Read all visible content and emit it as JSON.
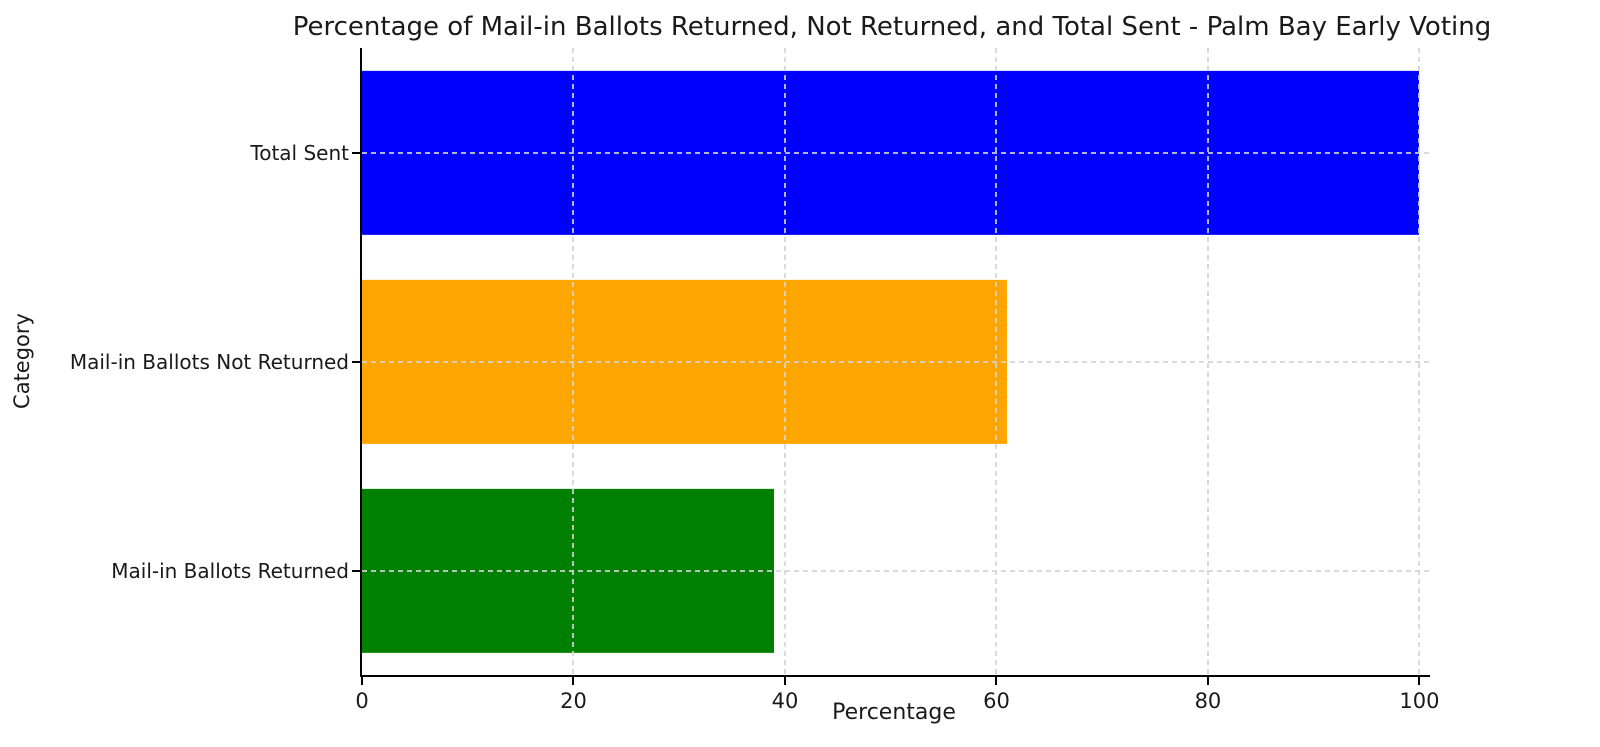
{
  "chart_data": {
    "type": "bar",
    "orientation": "horizontal",
    "title": "Percentage of Mail-in Ballots Returned, Not Returned, and Total Sent - Palm Bay Early Voting",
    "xlabel": "Percentage",
    "ylabel": "Category",
    "categories": [
      "Total Sent",
      "Mail-in Ballots Not Returned",
      "Mail-in Ballots Returned"
    ],
    "values": [
      100,
      61,
      39
    ],
    "bar_colors": [
      "#0000ff",
      "#ffa500",
      "#008000"
    ],
    "xticks": [
      0,
      20,
      40,
      60,
      80,
      100
    ],
    "xlim": [
      0,
      101
    ],
    "grid": "dashed",
    "grid_color": "#d4d4d4",
    "legend": "none"
  },
  "colors": {
    "background": "#ffffff",
    "spine": "#000000",
    "text": "#1a1a1a"
  }
}
